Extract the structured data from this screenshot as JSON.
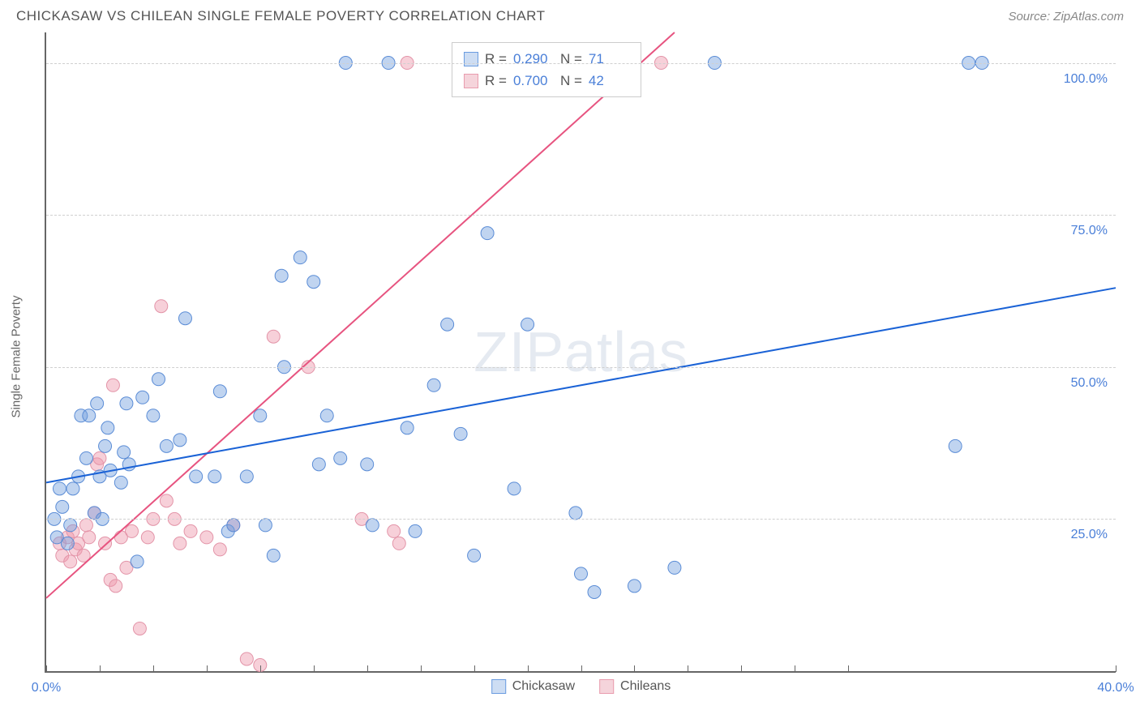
{
  "title": "CHICKASAW VS CHILEAN SINGLE FEMALE POVERTY CORRELATION CHART",
  "source": "Source: ZipAtlas.com",
  "y_axis_label": "Single Female Poverty",
  "watermark": "ZIPatlas",
  "chart": {
    "type": "scatter",
    "xlim": [
      0,
      40
    ],
    "ylim": [
      0,
      105
    ],
    "x_ticks": [
      0,
      2,
      4,
      6,
      8,
      10,
      12,
      14,
      16,
      18,
      20,
      22,
      24,
      26,
      28,
      30,
      40
    ],
    "x_tick_labels": {
      "0": "0.0%",
      "40": "40.0%"
    },
    "y_grid_values": [
      25,
      50,
      75,
      100
    ],
    "y_tick_labels": {
      "25": "25.0%",
      "50": "50.0%",
      "75": "75.0%",
      "100": "100.0%"
    },
    "background_color": "#ffffff",
    "grid_color": "#d0d0d0",
    "axis_color": "#666666",
    "marker_radius": 8,
    "marker_stroke_width": 1,
    "line_width": 2
  },
  "series_a": {
    "name": "Chickasaw",
    "fill": "rgba(115, 160, 222, 0.45)",
    "stroke": "#5a8cd6",
    "swatch_fill": "#cdddf3",
    "swatch_stroke": "#6a9ce0",
    "R_label": "R =",
    "R_value": "0.290",
    "N_label": "N =",
    "N_value": "71",
    "trend": {
      "x1": 0,
      "y1": 31,
      "x2": 40,
      "y2": 63,
      "color": "#1a62d6"
    },
    "points": [
      [
        0.3,
        25
      ],
      [
        0.4,
        22
      ],
      [
        0.5,
        30
      ],
      [
        0.6,
        27
      ],
      [
        0.8,
        21
      ],
      [
        0.9,
        24
      ],
      [
        1.0,
        30
      ],
      [
        1.2,
        32
      ],
      [
        1.3,
        42
      ],
      [
        1.5,
        35
      ],
      [
        1.6,
        42
      ],
      [
        1.8,
        26
      ],
      [
        1.9,
        44
      ],
      [
        2.0,
        32
      ],
      [
        2.1,
        25
      ],
      [
        2.2,
        37
      ],
      [
        2.3,
        40
      ],
      [
        2.4,
        33
      ],
      [
        2.8,
        31
      ],
      [
        2.9,
        36
      ],
      [
        3.0,
        44
      ],
      [
        3.1,
        34
      ],
      [
        3.4,
        18
      ],
      [
        3.6,
        45
      ],
      [
        4.0,
        42
      ],
      [
        4.2,
        48
      ],
      [
        4.5,
        37
      ],
      [
        5.0,
        38
      ],
      [
        5.2,
        58
      ],
      [
        5.6,
        32
      ],
      [
        6.3,
        32
      ],
      [
        6.5,
        46
      ],
      [
        6.8,
        23
      ],
      [
        7.0,
        24
      ],
      [
        7.5,
        32
      ],
      [
        8.0,
        42
      ],
      [
        8.2,
        24
      ],
      [
        8.5,
        19
      ],
      [
        8.8,
        65
      ],
      [
        8.9,
        50
      ],
      [
        9.5,
        68
      ],
      [
        10.0,
        64
      ],
      [
        10.2,
        34
      ],
      [
        10.5,
        42
      ],
      [
        11.0,
        35
      ],
      [
        11.2,
        100
      ],
      [
        12.0,
        34
      ],
      [
        12.2,
        24
      ],
      [
        12.8,
        100
      ],
      [
        13.5,
        40
      ],
      [
        13.8,
        23
      ],
      [
        14.5,
        47
      ],
      [
        15.0,
        57
      ],
      [
        15.5,
        39
      ],
      [
        16.0,
        19
      ],
      [
        16.5,
        72
      ],
      [
        17.5,
        30
      ],
      [
        18.0,
        57
      ],
      [
        19.3,
        100
      ],
      [
        19.8,
        26
      ],
      [
        20.0,
        16
      ],
      [
        20.5,
        13
      ],
      [
        22.0,
        14
      ],
      [
        23.5,
        17
      ],
      [
        25.0,
        100
      ],
      [
        34.0,
        37
      ],
      [
        34.5,
        100
      ],
      [
        35.0,
        100
      ]
    ]
  },
  "series_b": {
    "name": "Chileans",
    "fill": "rgba(238, 150, 170, 0.45)",
    "stroke": "#e394a8",
    "swatch_fill": "#f5d4db",
    "swatch_stroke": "#e99cae",
    "R_label": "R =",
    "R_value": "0.700",
    "N_label": "N =",
    "N_value": "42",
    "trend": {
      "x1": 0,
      "y1": 12,
      "x2": 23.5,
      "y2": 105,
      "color": "#e75480"
    },
    "points": [
      [
        0.5,
        21
      ],
      [
        0.6,
        19
      ],
      [
        0.8,
        22
      ],
      [
        0.9,
        18
      ],
      [
        1.0,
        23
      ],
      [
        1.1,
        20
      ],
      [
        1.2,
        21
      ],
      [
        1.4,
        19
      ],
      [
        1.5,
        24
      ],
      [
        1.6,
        22
      ],
      [
        1.8,
        26
      ],
      [
        1.9,
        34
      ],
      [
        2.0,
        35
      ],
      [
        2.2,
        21
      ],
      [
        2.4,
        15
      ],
      [
        2.5,
        47
      ],
      [
        2.6,
        14
      ],
      [
        2.8,
        22
      ],
      [
        3.0,
        17
      ],
      [
        3.2,
        23
      ],
      [
        3.5,
        7
      ],
      [
        3.8,
        22
      ],
      [
        4.0,
        25
      ],
      [
        4.3,
        60
      ],
      [
        4.5,
        28
      ],
      [
        4.8,
        25
      ],
      [
        5.0,
        21
      ],
      [
        5.4,
        23
      ],
      [
        6.0,
        22
      ],
      [
        6.5,
        20
      ],
      [
        7.0,
        24
      ],
      [
        7.5,
        2
      ],
      [
        8.0,
        1
      ],
      [
        8.5,
        55
      ],
      [
        9.8,
        50
      ],
      [
        11.8,
        25
      ],
      [
        13.0,
        23
      ],
      [
        13.2,
        21
      ],
      [
        13.5,
        100
      ],
      [
        19.6,
        100
      ],
      [
        23.0,
        100
      ]
    ]
  },
  "legend_bottom": {
    "item_a": "Chickasaw",
    "item_b": "Chileans"
  }
}
